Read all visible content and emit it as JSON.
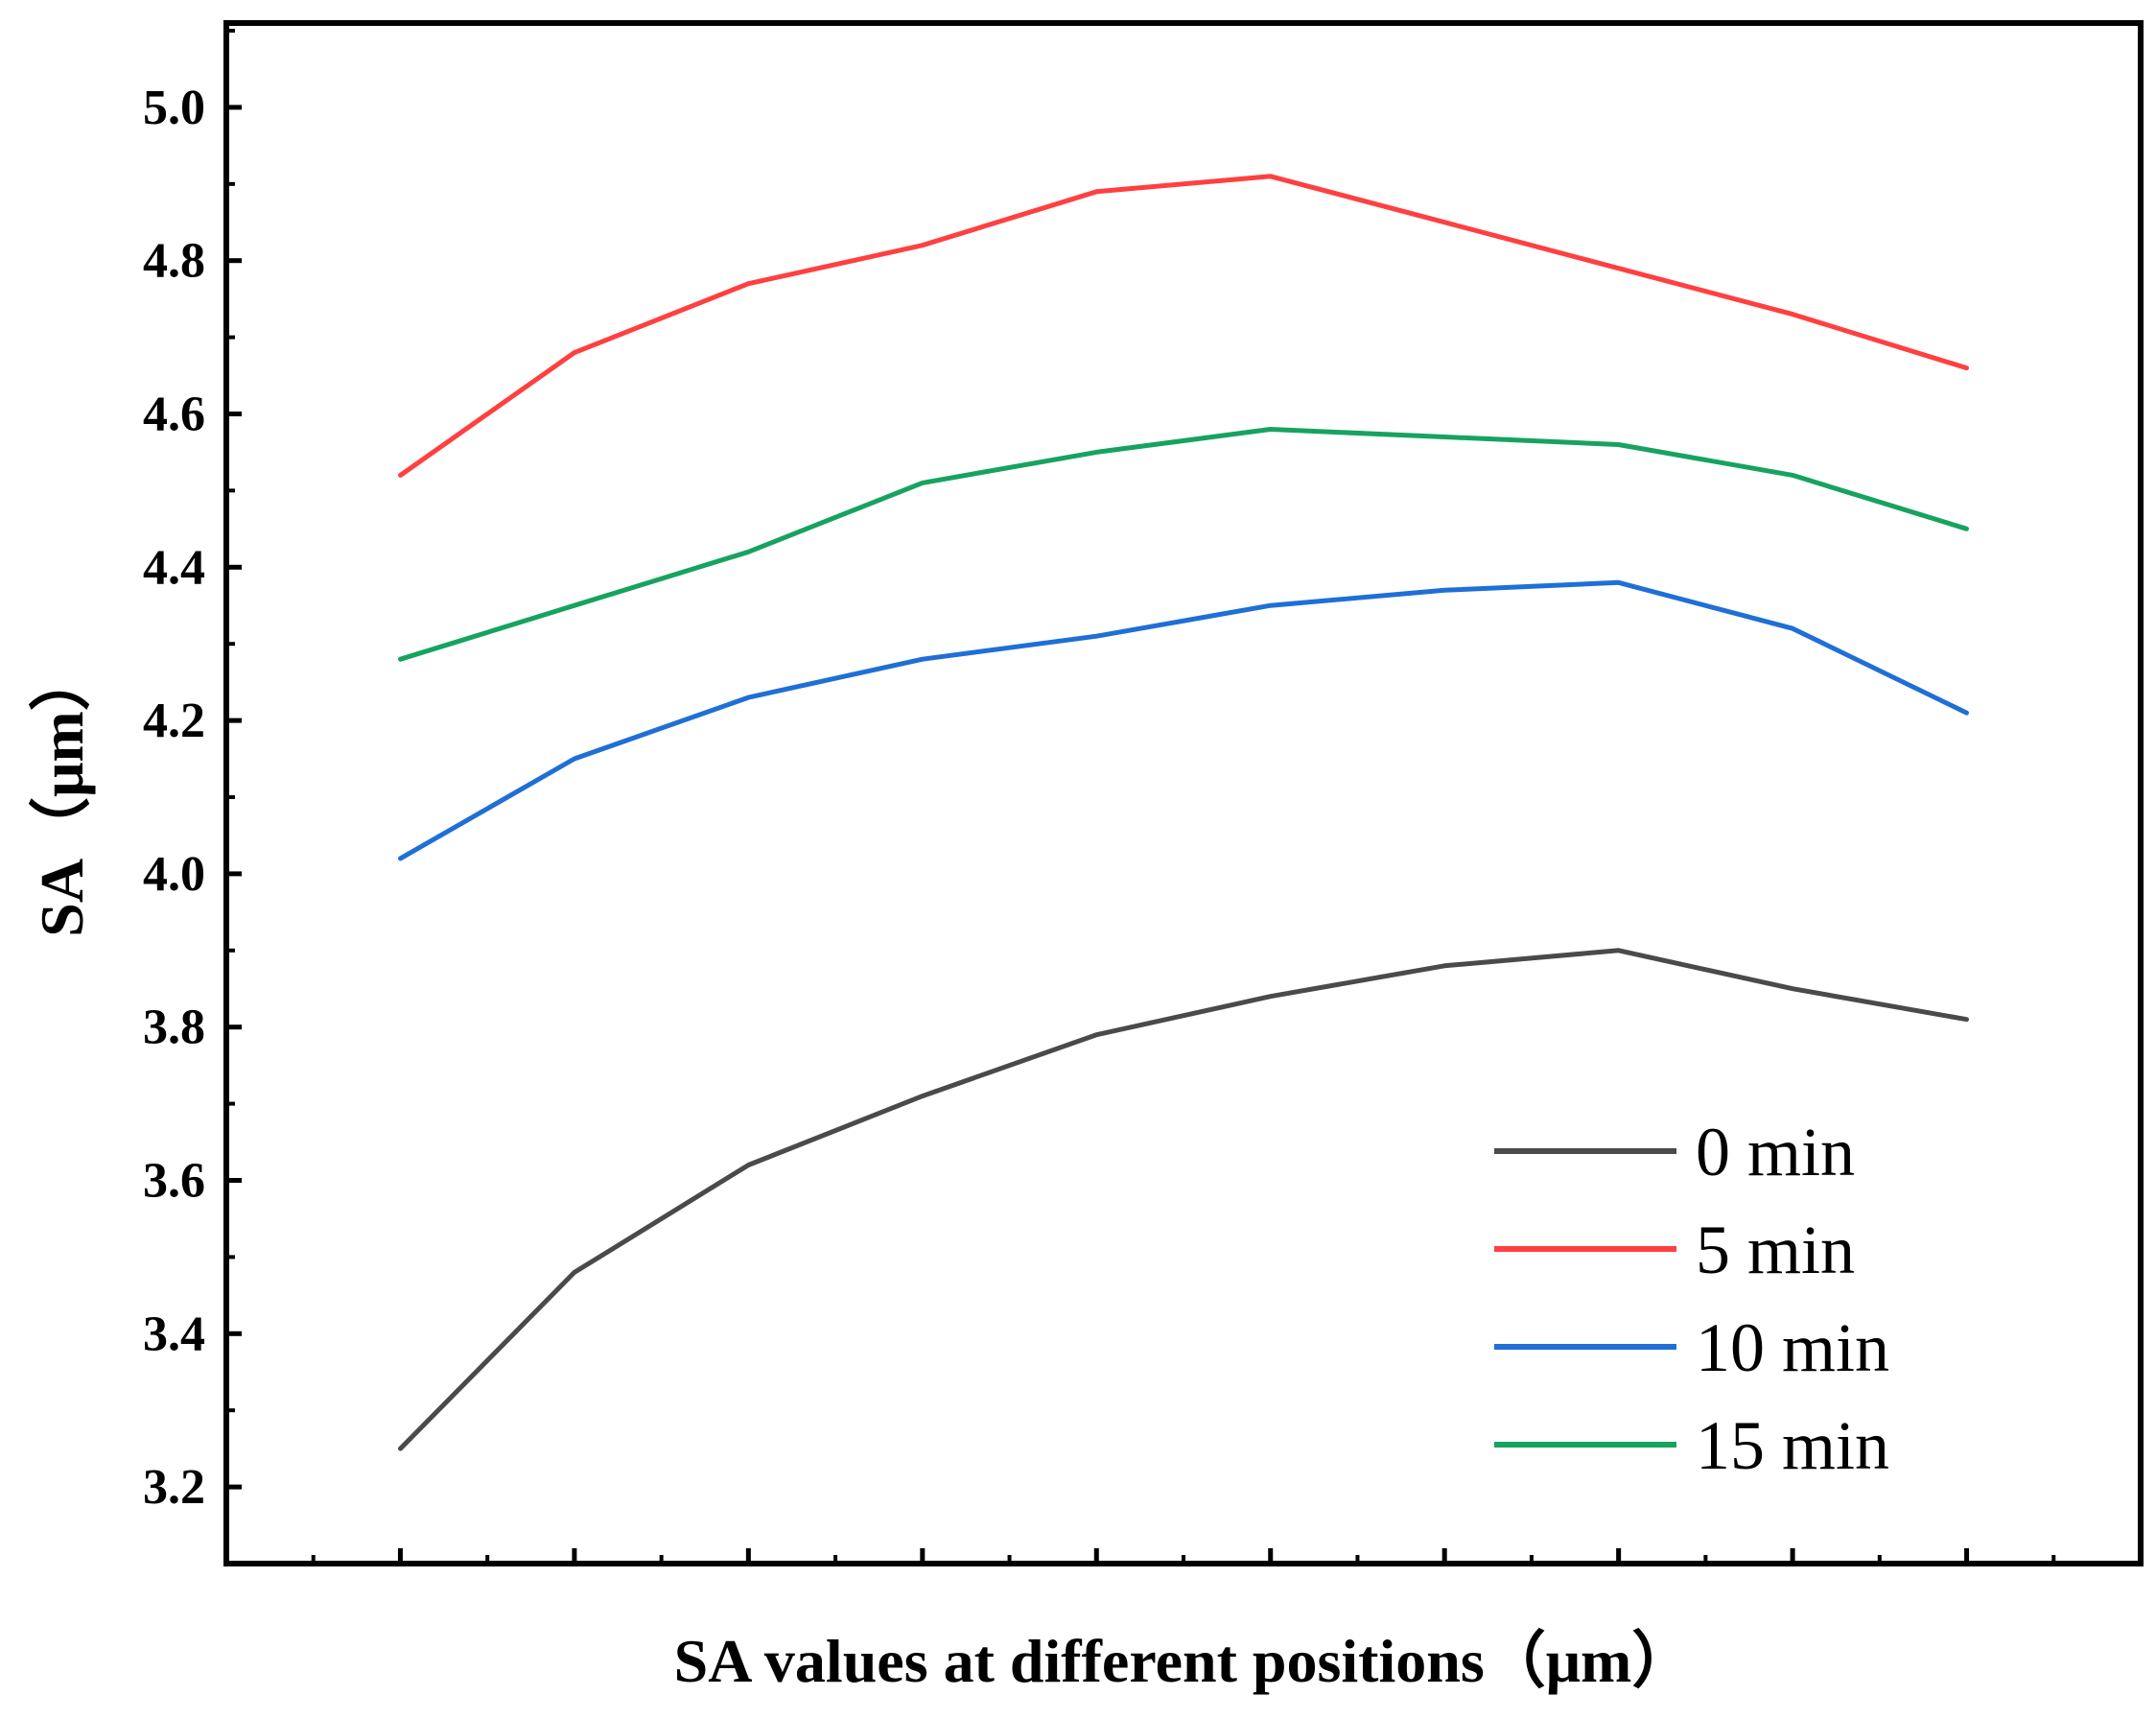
{
  "chart_data": {
    "type": "line",
    "title": "",
    "xlabel": "SA values at different positions（μm）",
    "ylabel": "SA（μm）",
    "x": [
      1,
      2,
      3,
      4,
      5,
      6,
      7,
      8,
      9,
      10
    ],
    "xlim": [
      0,
      11
    ],
    "ylim": [
      3.1,
      5.11
    ],
    "yticks": [
      "3.2",
      "3.4",
      "3.6",
      "3.8",
      "4.0",
      "4.2",
      "4.4",
      "4.6",
      "4.8",
      "5.0"
    ],
    "grid": false,
    "legend_position": "bottom-right",
    "series": [
      {
        "name": "0 min",
        "color": "#4a4a4a",
        "values": [
          3.25,
          3.48,
          3.62,
          3.71,
          3.79,
          3.84,
          3.88,
          3.9,
          3.85,
          3.81
        ]
      },
      {
        "name": "5 min",
        "color": "#ff4040",
        "values": [
          4.52,
          4.68,
          4.77,
          4.82,
          4.89,
          4.91,
          4.85,
          4.79,
          4.73,
          4.66
        ]
      },
      {
        "name": "10 min",
        "color": "#1f6fd6",
        "values": [
          4.02,
          4.15,
          4.23,
          4.28,
          4.31,
          4.35,
          4.37,
          4.38,
          4.32,
          4.21
        ]
      },
      {
        "name": "15 min",
        "color": "#17a35f",
        "values": [
          4.28,
          4.35,
          4.42,
          4.51,
          4.55,
          4.58,
          4.57,
          4.56,
          4.52,
          4.45
        ]
      }
    ]
  }
}
